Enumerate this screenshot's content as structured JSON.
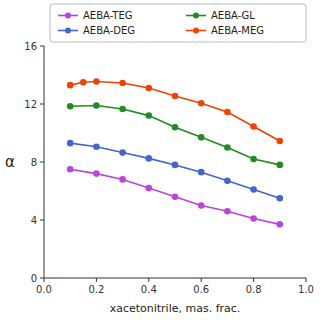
{
  "chart_data": {
    "type": "line",
    "x_label": "xacetonitrile, mas. frac.",
    "y_label": "α",
    "series": [
      {
        "name": "AEBA-TEG",
        "color": "#bb44dd",
        "marker": "circle",
        "x": [
          0.1,
          0.2,
          0.3,
          0.4,
          0.5,
          0.6,
          0.7,
          0.8,
          0.9
        ],
        "values": [
          7.5,
          7.2,
          6.8,
          6.2,
          5.6,
          5.0,
          4.6,
          4.1,
          3.7
        ]
      },
      {
        "name": "AEBA-GL",
        "color": "#228B22",
        "marker": "circle",
        "x": [
          0.1,
          0.2,
          0.3,
          0.4,
          0.5,
          0.6,
          0.7,
          0.8,
          0.9
        ],
        "values": [
          11.85,
          11.9,
          11.65,
          11.2,
          10.4,
          9.7,
          9.0,
          8.2,
          7.8
        ]
      },
      {
        "name": "AEBA-DEG",
        "color": "#4466cc",
        "marker": "circle",
        "x": [
          0.1,
          0.2,
          0.3,
          0.4,
          0.5,
          0.6,
          0.7,
          0.8,
          0.9
        ],
        "values": [
          9.3,
          9.05,
          8.65,
          8.25,
          7.8,
          7.3,
          6.7,
          6.1,
          5.5
        ]
      },
      {
        "name": "AEBA-MEG",
        "color": "#ee4400",
        "marker": "circle",
        "x": [
          0.1,
          0.15,
          0.2,
          0.3,
          0.4,
          0.5,
          0.6,
          0.7,
          0.8,
          0.9
        ],
        "values": [
          13.3,
          13.5,
          13.55,
          13.45,
          13.1,
          12.55,
          12.05,
          11.45,
          10.45,
          9.45
        ]
      }
    ],
    "xlim": [
      0,
      1
    ],
    "ylim": [
      0,
      16
    ],
    "xticks": [
      {
        "value": 0,
        "label": "0.0"
      },
      0.2,
      0.4,
      0.6,
      0.8,
      {
        "value": 1.0,
        "label": "1.0"
      }
    ],
    "yticks": [
      0,
      4,
      8,
      12,
      16
    ],
    "grid": false,
    "legend": "upper right"
  }
}
